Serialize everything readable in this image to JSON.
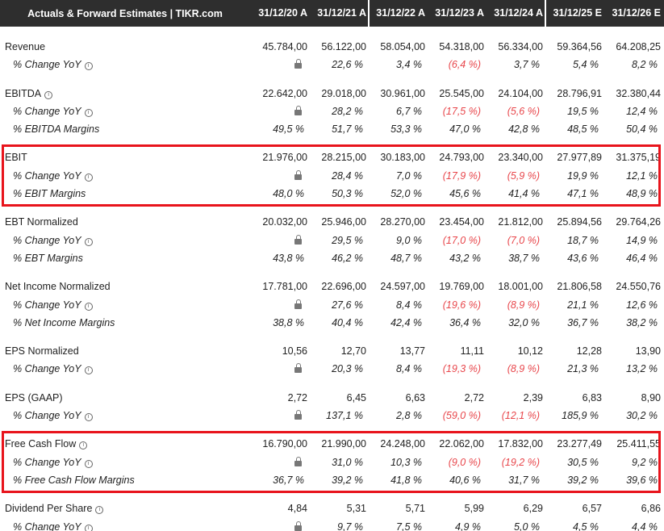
{
  "header": {
    "title": "Actuals & Forward Estimates | TIKR.com",
    "columns": [
      "31/12/20 A",
      "31/12/21 A",
      "31/12/22 A",
      "31/12/23 A",
      "31/12/24 A",
      "31/12/25 E",
      "31/12/26 E"
    ]
  },
  "highlight_color": "#e8141c",
  "negative_color": "#e8464b",
  "groups": [
    {
      "rows": [
        {
          "label": "Revenue",
          "sub": false,
          "info": false,
          "values": [
            "45.784,00",
            "56.122,00",
            "58.054,00",
            "54.318,00",
            "56.334,00",
            "59.364,56",
            "64.208,25"
          ]
        },
        {
          "label": "% Change YoY",
          "sub": true,
          "info": true,
          "values": [
            "lock",
            "22,6 %",
            "3,4 %",
            "(6,4 %)",
            "3,7 %",
            "5,4 %",
            "8,2 %"
          ]
        }
      ]
    },
    {
      "rows": [
        {
          "label": "EBITDA",
          "sub": false,
          "info": true,
          "values": [
            "22.642,00",
            "29.018,00",
            "30.961,00",
            "25.545,00",
            "24.104,00",
            "28.796,91",
            "32.380,44"
          ]
        },
        {
          "label": "% Change YoY",
          "sub": true,
          "info": true,
          "values": [
            "lock",
            "28,2 %",
            "6,7 %",
            "(17,5 %)",
            "(5,6 %)",
            "19,5 %",
            "12,4 %"
          ]
        },
        {
          "label": "% EBITDA Margins",
          "sub": true,
          "info": false,
          "values": [
            "49,5 %",
            "51,7 %",
            "53,3 %",
            "47,0 %",
            "42,8 %",
            "48,5 %",
            "50,4 %"
          ]
        }
      ]
    },
    {
      "highlight": true,
      "rows": [
        {
          "label": "EBIT",
          "sub": false,
          "info": false,
          "values": [
            "21.976,00",
            "28.215,00",
            "30.183,00",
            "24.793,00",
            "23.340,00",
            "27.977,89",
            "31.375,19"
          ]
        },
        {
          "label": "% Change YoY",
          "sub": true,
          "info": true,
          "values": [
            "lock",
            "28,4 %",
            "7,0 %",
            "(17,9 %)",
            "(5,9 %)",
            "19,9 %",
            "12,1 %"
          ]
        },
        {
          "label": "% EBIT Margins",
          "sub": true,
          "info": false,
          "values": [
            "48,0 %",
            "50,3 %",
            "52,0 %",
            "45,6 %",
            "41,4 %",
            "47,1 %",
            "48,9 %"
          ]
        }
      ]
    },
    {
      "rows": [
        {
          "label": "EBT Normalized",
          "sub": false,
          "info": false,
          "values": [
            "20.032,00",
            "25.946,00",
            "28.270,00",
            "23.454,00",
            "21.812,00",
            "25.894,56",
            "29.764,26"
          ]
        },
        {
          "label": "% Change YoY",
          "sub": true,
          "info": true,
          "values": [
            "lock",
            "29,5 %",
            "9,0 %",
            "(17,0 %)",
            "(7,0 %)",
            "18,7 %",
            "14,9 %"
          ]
        },
        {
          "label": "% EBT Margins",
          "sub": true,
          "info": false,
          "values": [
            "43,8 %",
            "46,2 %",
            "48,7 %",
            "43,2 %",
            "38,7 %",
            "43,6 %",
            "46,4 %"
          ]
        }
      ]
    },
    {
      "rows": [
        {
          "label": "Net Income Normalized",
          "sub": false,
          "info": false,
          "values": [
            "17.781,00",
            "22.696,00",
            "24.597,00",
            "19.769,00",
            "18.001,00",
            "21.806,58",
            "24.550,76"
          ]
        },
        {
          "label": "% Change YoY",
          "sub": true,
          "info": true,
          "values": [
            "lock",
            "27,6 %",
            "8,4 %",
            "(19,6 %)",
            "(8,9 %)",
            "21,1 %",
            "12,6 %"
          ]
        },
        {
          "label": "% Net Income Margins",
          "sub": true,
          "info": false,
          "values": [
            "38,8 %",
            "40,4 %",
            "42,4 %",
            "36,4 %",
            "32,0 %",
            "36,7 %",
            "38,2 %"
          ]
        }
      ]
    },
    {
      "rows": [
        {
          "label": "EPS Normalized",
          "sub": false,
          "info": false,
          "values": [
            "10,56",
            "12,70",
            "13,77",
            "11,11",
            "10,12",
            "12,28",
            "13,90"
          ]
        },
        {
          "label": "% Change YoY",
          "sub": true,
          "info": true,
          "values": [
            "lock",
            "20,3 %",
            "8,4 %",
            "(19,3 %)",
            "(8,9 %)",
            "21,3 %",
            "13,2 %"
          ]
        }
      ]
    },
    {
      "rows": [
        {
          "label": "EPS (GAAP)",
          "sub": false,
          "info": false,
          "values": [
            "2,72",
            "6,45",
            "6,63",
            "2,72",
            "2,39",
            "6,83",
            "8,90"
          ]
        },
        {
          "label": "% Change YoY",
          "sub": true,
          "info": true,
          "values": [
            "lock",
            "137,1 %",
            "2,8 %",
            "(59,0 %)",
            "(12,1 %)",
            "185,9 %",
            "30,2 %"
          ]
        }
      ]
    },
    {
      "highlight": true,
      "rows": [
        {
          "label": "Free Cash Flow",
          "sub": false,
          "info": true,
          "values": [
            "16.790,00",
            "21.990,00",
            "24.248,00",
            "22.062,00",
            "17.832,00",
            "23.277,49",
            "25.411,55"
          ]
        },
        {
          "label": "% Change YoY",
          "sub": true,
          "info": true,
          "values": [
            "lock",
            "31,0 %",
            "10,3 %",
            "(9,0 %)",
            "(19,2 %)",
            "30,5 %",
            "9,2 %"
          ]
        },
        {
          "label": "% Free Cash Flow Margins",
          "sub": true,
          "info": false,
          "values": [
            "36,7 %",
            "39,2 %",
            "41,8 %",
            "40,6 %",
            "31,7 %",
            "39,2 %",
            "39,6 %"
          ]
        }
      ]
    },
    {
      "rows": [
        {
          "label": "Dividend Per Share",
          "sub": false,
          "info": true,
          "values": [
            "4,84",
            "5,31",
            "5,71",
            "5,99",
            "6,29",
            "6,57",
            "6,86"
          ]
        },
        {
          "label": "% Change YoY",
          "sub": true,
          "info": true,
          "values": [
            "lock",
            "9,7 %",
            "7,5 %",
            "4,9 %",
            "5,0 %",
            "4,5 %",
            "4,4 %"
          ]
        }
      ]
    }
  ]
}
